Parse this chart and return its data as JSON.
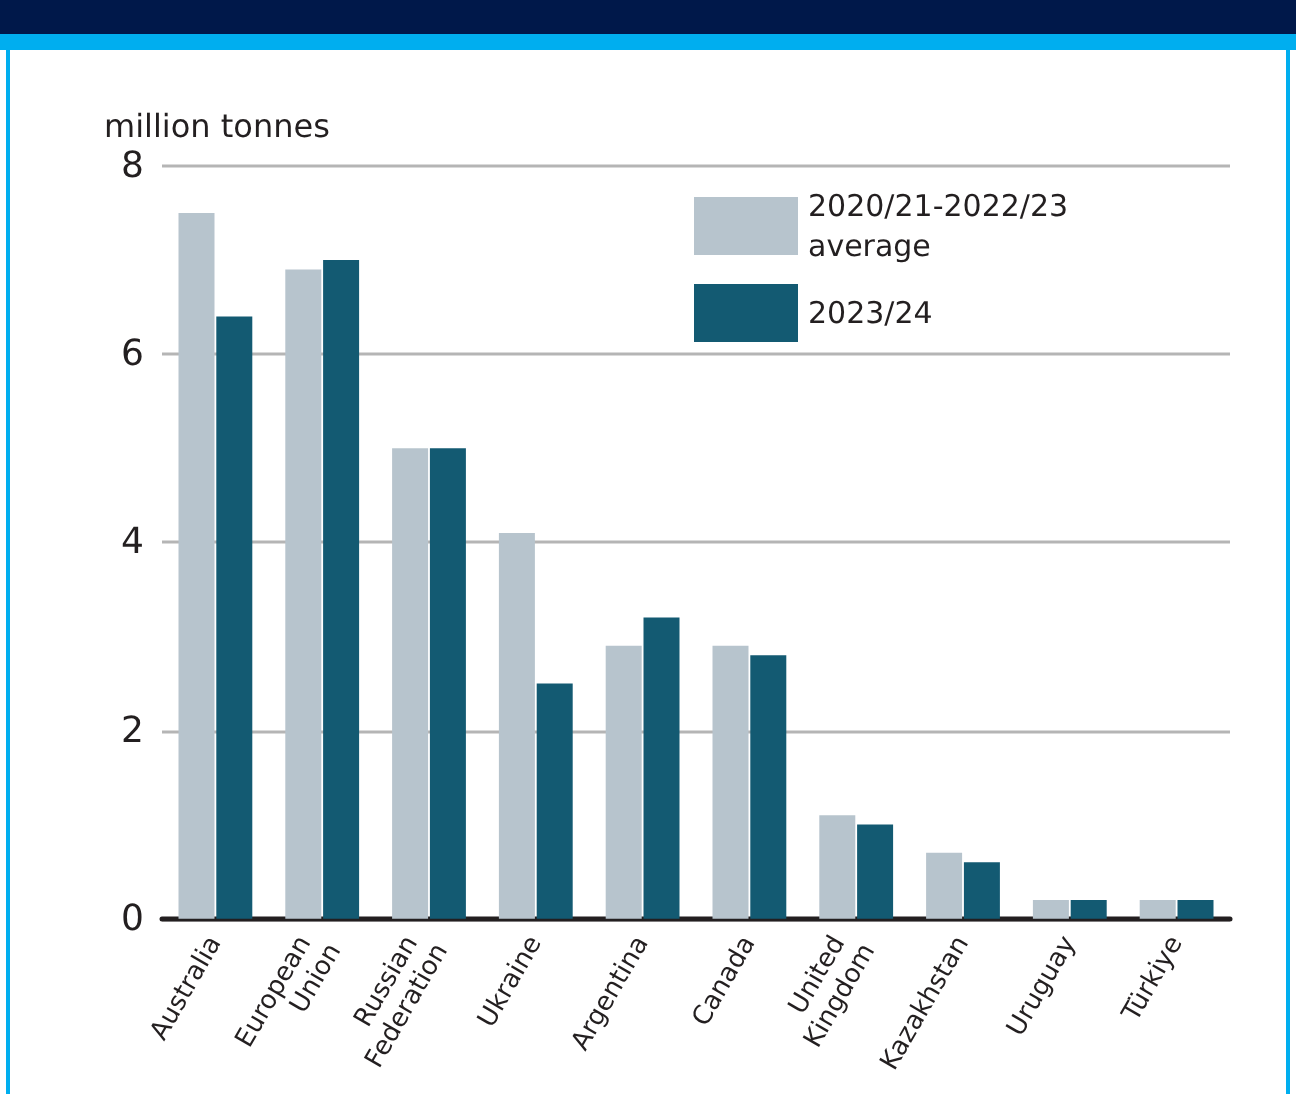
{
  "chart_data": {
    "type": "bar",
    "ylabel": "million tonnes",
    "categories": [
      "Australia",
      "European Union",
      "Russian Federation",
      "Ukraine",
      "Argentina",
      "Canada",
      "United Kingdom",
      "Kazakhstan",
      "Uruguay",
      "Türkiye"
    ],
    "series": [
      {
        "name": "2020/21-2022/23 average",
        "color": "#b7c4cd",
        "values": [
          7.5,
          6.9,
          5.0,
          4.1,
          2.9,
          2.9,
          1.1,
          0.7,
          0.2,
          0.2
        ]
      },
      {
        "name": "2023/24",
        "color": "#135a72",
        "values": [
          6.4,
          7.0,
          5.0,
          2.5,
          3.2,
          2.8,
          1.0,
          0.6,
          0.2,
          0.2
        ]
      }
    ],
    "ylim": [
      0,
      8
    ],
    "yticks": [
      0,
      2,
      4,
      6,
      8
    ],
    "grid": "y",
    "legend": "top right"
  }
}
